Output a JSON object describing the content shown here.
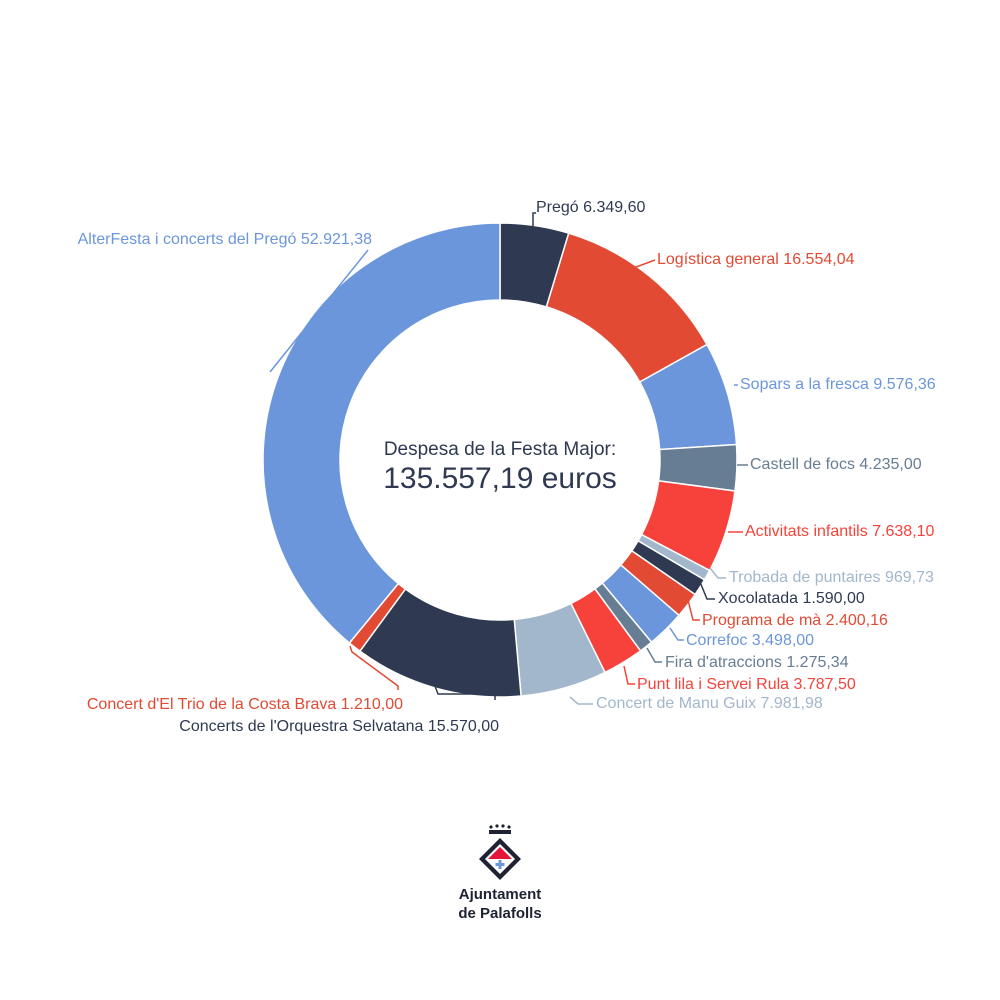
{
  "chart_data": {
    "type": "pie",
    "donut": true,
    "center_title": "Despesa de la Festa Major:",
    "center_total": "135.557,19 euros",
    "slices": [
      {
        "label": "Pregó",
        "value": 6349.6,
        "display": "6.349,60",
        "color": "#2f3a52",
        "text_color": "#2f3a52"
      },
      {
        "label": "Logística general",
        "value": 16554.04,
        "display": "16.554,04",
        "color": "#e24a33",
        "text_color": "#e24a33"
      },
      {
        "label": "Sopars a la fresca",
        "value": 9576.36,
        "display": "9.576,36",
        "color": "#6c96dc",
        "text_color": "#6c96dc"
      },
      {
        "label": "Castell de focs",
        "value": 4235.0,
        "display": "4.235,00",
        "color": "#677d93",
        "text_color": "#677d93"
      },
      {
        "label": "Activitats infantils",
        "value": 7638.1,
        "display": "7.638,10",
        "color": "#f6423a",
        "text_color": "#f6423a"
      },
      {
        "label": "Trobada de puntaires",
        "value": 969.73,
        "display": "969,73",
        "color": "#a2b7cc",
        "text_color": "#a2b7cc"
      },
      {
        "label": "Xocolatada",
        "value": 1590.0,
        "display": "1.590,00",
        "color": "#2f3a52",
        "text_color": "#2f3a52"
      },
      {
        "label": "Programa de mà",
        "value": 2400.16,
        "display": "2.400,16",
        "color": "#e24a33",
        "text_color": "#e24a33"
      },
      {
        "label": "Correfoc",
        "value": 3498.0,
        "display": "3.498,00",
        "color": "#6c96dc",
        "text_color": "#6c96dc"
      },
      {
        "label": "Fira d'atraccions",
        "value": 1275.34,
        "display": "1.275,34",
        "color": "#677d93",
        "text_color": "#677d93"
      },
      {
        "label": "Punt lila i Servei Rula",
        "value": 3787.5,
        "display": "3.787,50",
        "color": "#f6423a",
        "text_color": "#f6423a"
      },
      {
        "label": "Concert de Manu Guix",
        "value": 7981.98,
        "display": "7.981,98",
        "color": "#a2b7cc",
        "text_color": "#a2b7cc"
      },
      {
        "label": "Concerts de l'Orquestra Selvatana",
        "value": 15570.0,
        "display": "15.570,00",
        "color": "#2f3a52",
        "text_color": "#2f3a52"
      },
      {
        "label": "Concert d'El Trio de la Costa Brava",
        "value": 1210.0,
        "display": "1.210,00",
        "color": "#e24a33",
        "text_color": "#e24a33"
      },
      {
        "label": "AlterFesta i concerts del Pregó",
        "value": 52921.38,
        "display": "52.921,38",
        "color": "#6c96dc",
        "text_color": "#6c96dc"
      }
    ]
  },
  "logo": {
    "line1": "Ajuntament",
    "line2": "de Palafolls",
    "icon": "palafolls-crest-icon",
    "red": "#e4143b",
    "dark": "#1e2233"
  }
}
